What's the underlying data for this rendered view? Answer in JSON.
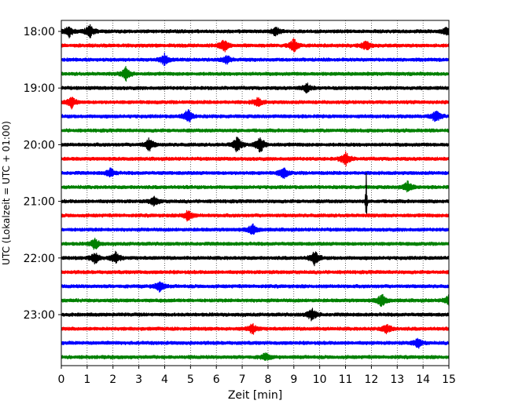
{
  "chart_data": {
    "type": "line",
    "xlabel": "Zeit  [min]",
    "ylabel": "UTC (Lokalzeit = UTC + 01:00)",
    "xlim": [
      0,
      15
    ],
    "x_ticks": [
      "0",
      "1",
      "2",
      "3",
      "4",
      "5",
      "6",
      "7",
      "8",
      "9",
      "10",
      "11",
      "12",
      "13",
      "14",
      "15"
    ],
    "y_ticks": [
      "18:00",
      "19:00",
      "20:00",
      "21:00",
      "22:00",
      "23:00"
    ],
    "grid": "vertical-dotted",
    "trace_colors": [
      "#000000",
      "#ff0000",
      "#0000ff",
      "#008000"
    ],
    "trace_count": 24,
    "trace_minutes_per_line": 15,
    "start_time": "18:00",
    "events": [
      {
        "line": 0,
        "minute": 0.3,
        "amplitude": 0.45
      },
      {
        "line": 0,
        "minute": 1.1,
        "amplitude": 0.55
      },
      {
        "line": 0,
        "minute": 8.3,
        "amplitude": 0.35
      },
      {
        "line": 0,
        "minute": 14.9,
        "amplitude": 0.3
      },
      {
        "line": 1,
        "minute": 6.3,
        "amplitude": 0.5
      },
      {
        "line": 1,
        "minute": 9.0,
        "amplitude": 0.55
      },
      {
        "line": 1,
        "minute": 11.8,
        "amplitude": 0.4
      },
      {
        "line": 2,
        "minute": 4.0,
        "amplitude": 0.45
      },
      {
        "line": 2,
        "minute": 6.4,
        "amplitude": 0.3
      },
      {
        "line": 3,
        "minute": 2.5,
        "amplitude": 0.5
      },
      {
        "line": 4,
        "minute": 9.5,
        "amplitude": 0.35
      },
      {
        "line": 5,
        "minute": 0.4,
        "amplitude": 0.45
      },
      {
        "line": 5,
        "minute": 7.6,
        "amplitude": 0.35
      },
      {
        "line": 6,
        "minute": 4.9,
        "amplitude": 0.55
      },
      {
        "line": 6,
        "minute": 14.5,
        "amplitude": 0.5
      },
      {
        "line": 8,
        "minute": 3.4,
        "amplitude": 0.5
      },
      {
        "line": 8,
        "minute": 6.8,
        "amplitude": 0.6
      },
      {
        "line": 8,
        "minute": 7.7,
        "amplitude": 0.65
      },
      {
        "line": 9,
        "minute": 11.0,
        "amplitude": 0.55
      },
      {
        "line": 10,
        "minute": 1.9,
        "amplitude": 0.35
      },
      {
        "line": 10,
        "minute": 8.6,
        "amplitude": 0.45
      },
      {
        "line": 11,
        "minute": 13.4,
        "amplitude": 0.45
      },
      {
        "line": 12,
        "minute": 11.8,
        "amplitude": 2.6
      },
      {
        "line": 12,
        "minute": 3.6,
        "amplitude": 0.35
      },
      {
        "line": 13,
        "minute": 4.9,
        "amplitude": 0.45
      },
      {
        "line": 14,
        "minute": 7.4,
        "amplitude": 0.45
      },
      {
        "line": 15,
        "minute": 1.3,
        "amplitude": 0.45
      },
      {
        "line": 16,
        "minute": 1.3,
        "amplitude": 0.5
      },
      {
        "line": 16,
        "minute": 2.1,
        "amplitude": 0.45
      },
      {
        "line": 16,
        "minute": 9.8,
        "amplitude": 0.55
      },
      {
        "line": 18,
        "minute": 3.8,
        "amplitude": 0.45
      },
      {
        "line": 19,
        "minute": 12.4,
        "amplitude": 0.55
      },
      {
        "line": 19,
        "minute": 15.0,
        "amplitude": 0.45
      },
      {
        "line": 20,
        "minute": 9.7,
        "amplitude": 0.5
      },
      {
        "line": 21,
        "minute": 7.4,
        "amplitude": 0.4
      },
      {
        "line": 21,
        "minute": 12.6,
        "amplitude": 0.4
      },
      {
        "line": 22,
        "minute": 13.8,
        "amplitude": 0.4
      },
      {
        "line": 23,
        "minute": 7.9,
        "amplitude": 0.3
      }
    ]
  }
}
